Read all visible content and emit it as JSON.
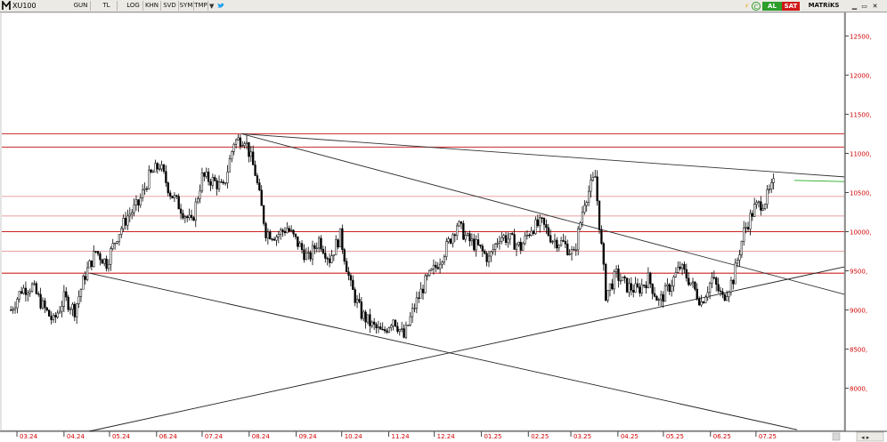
{
  "toolbar": {
    "symbol": "XU100",
    "buttons": [
      "GUN",
      "TL",
      "LOG",
      "KHN",
      "SVD",
      "SYM",
      "TMP"
    ],
    "buy_label": "AL",
    "sell_label": "SAT",
    "matrix_label": "MATRiKS",
    "colors": {
      "buy": "#2c9e2c",
      "sell": "#d01818",
      "bolt": "#f0a000"
    },
    "icons": [
      "matriks-logo-icon",
      "twitter-bird-icon",
      "lightning-icon",
      "refresh-icon",
      "minimize-icon",
      "restore-icon",
      "close-icon"
    ]
  },
  "chart_data": {
    "type": "candlestick",
    "symbol": "XU100",
    "y_ticks": [
      "12500,",
      "12000,",
      "11500,",
      "11000,",
      "10500,",
      "10000,",
      "9500,",
      "9000,",
      "8500,",
      "8000,"
    ],
    "y_tick_values": [
      12500,
      12000,
      11500,
      11000,
      10500,
      10000,
      9500,
      9000,
      8500,
      8000
    ],
    "x_ticks": [
      "03.24",
      "04.24",
      "05.24",
      "06.24",
      "07.24",
      "08.24",
      "09.24",
      "10.24",
      "11.24",
      "12.24",
      "01.25",
      "02.25",
      "03.25",
      "04.25",
      "05.25",
      "06.25",
      "07.25"
    ],
    "ylim": [
      7450,
      12800
    ],
    "grid": false,
    "horizontal_levels": [
      {
        "value": 11250,
        "color": "#d04040",
        "weight": "strong"
      },
      {
        "value": 11080,
        "color": "#d04040",
        "weight": "strong"
      },
      {
        "value": 10450,
        "color": "#e28080",
        "weight": "light"
      },
      {
        "value": 10200,
        "color": "#e28080",
        "weight": "light"
      },
      {
        "value": 10000,
        "color": "#cc2222",
        "weight": "strong"
      },
      {
        "value": 9750,
        "color": "#e28080",
        "weight": "light"
      },
      {
        "value": 9470,
        "color": "#cc2222",
        "weight": "strong"
      }
    ],
    "trend_lines": [
      {
        "from": [
          "07.2024",
          11250
        ],
        "to": [
          "07.2025",
          10700
        ],
        "color": "#333333"
      },
      {
        "from": [
          "07.2024",
          11250
        ],
        "to": [
          "07.2025",
          9200
        ],
        "color": "#333333"
      },
      {
        "from": [
          "04.2024",
          9470
        ],
        "to": [
          "07.2025",
          7470
        ],
        "color": "#222222"
      },
      {
        "from": [
          "03.2024",
          7450
        ],
        "to": [
          "07.2025",
          9550
        ],
        "color": "#222222"
      },
      {
        "from": [
          "07.2025",
          10650
        ],
        "to": [
          "07.2025",
          10650
        ],
        "color": "#22aa22"
      }
    ],
    "series": [
      {
        "values": [
          [
            "2024-02-26",
            9000
          ],
          [
            "2024-03-04",
            9260
          ],
          [
            "2024-03-11",
            9300
          ],
          [
            "2024-03-18",
            9050
          ],
          [
            "2024-03-25",
            8850
          ],
          [
            "2024-04-01",
            9150
          ],
          [
            "2024-04-08",
            9000
          ],
          [
            "2024-04-15",
            9450
          ],
          [
            "2024-04-22",
            9750
          ],
          [
            "2024-04-29",
            9600
          ],
          [
            "2024-05-06",
            9950
          ],
          [
            "2024-05-13",
            10200
          ],
          [
            "2024-05-20",
            10350
          ],
          [
            "2024-05-27",
            10700
          ],
          [
            "2024-06-03",
            10850
          ],
          [
            "2024-06-10",
            10500
          ],
          [
            "2024-06-17",
            10300
          ],
          [
            "2024-06-24",
            10100
          ],
          [
            "2024-07-01",
            10700
          ],
          [
            "2024-07-08",
            10650
          ],
          [
            "2024-07-15",
            10550
          ],
          [
            "2024-07-22",
            11150
          ],
          [
            "2024-07-29",
            11200
          ],
          [
            "2024-08-05",
            10750
          ],
          [
            "2024-08-12",
            10000
          ],
          [
            "2024-08-19",
            9950
          ],
          [
            "2024-08-26",
            10050
          ],
          [
            "2024-09-02",
            9850
          ],
          [
            "2024-09-09",
            9650
          ],
          [
            "2024-09-16",
            9900
          ],
          [
            "2024-09-23",
            9650
          ],
          [
            "2024-09-30",
            9950
          ],
          [
            "2024-10-07",
            9300
          ],
          [
            "2024-10-14",
            8950
          ],
          [
            "2024-10-21",
            8800
          ],
          [
            "2024-10-28",
            8700
          ],
          [
            "2024-11-04",
            8900
          ],
          [
            "2024-11-11",
            8650
          ],
          [
            "2024-11-18",
            9050
          ],
          [
            "2024-11-25",
            9350
          ],
          [
            "2024-12-02",
            9550
          ],
          [
            "2024-12-09",
            9800
          ],
          [
            "2024-12-16",
            10100
          ],
          [
            "2024-12-23",
            9900
          ],
          [
            "2024-12-30",
            9800
          ],
          [
            "2025-01-06",
            9650
          ],
          [
            "2025-01-13",
            9950
          ],
          [
            "2025-01-20",
            9900
          ],
          [
            "2025-01-27",
            9800
          ],
          [
            "2025-02-03",
            10050
          ],
          [
            "2025-02-10",
            10100
          ],
          [
            "2025-02-17",
            9900
          ],
          [
            "2025-02-24",
            9850
          ],
          [
            "2025-03-03",
            9700
          ],
          [
            "2025-03-10",
            10400
          ],
          [
            "2025-03-17",
            10700
          ],
          [
            "2025-03-24",
            9200
          ],
          [
            "2025-03-31",
            9450
          ],
          [
            "2025-04-07",
            9300
          ],
          [
            "2025-04-14",
            9250
          ],
          [
            "2025-04-21",
            9400
          ],
          [
            "2025-04-28",
            9100
          ],
          [
            "2025-05-05",
            9300
          ],
          [
            "2025-05-12",
            9550
          ],
          [
            "2025-05-19",
            9350
          ],
          [
            "2025-05-26",
            9100
          ],
          [
            "2025-06-02",
            9400
          ],
          [
            "2025-06-09",
            9150
          ],
          [
            "2025-06-16",
            9400
          ],
          [
            "2025-06-23",
            10000
          ],
          [
            "2025-06-30",
            10300
          ],
          [
            "2025-07-07",
            10400
          ],
          [
            "2025-07-14",
            10650
          ]
        ]
      }
    ]
  }
}
